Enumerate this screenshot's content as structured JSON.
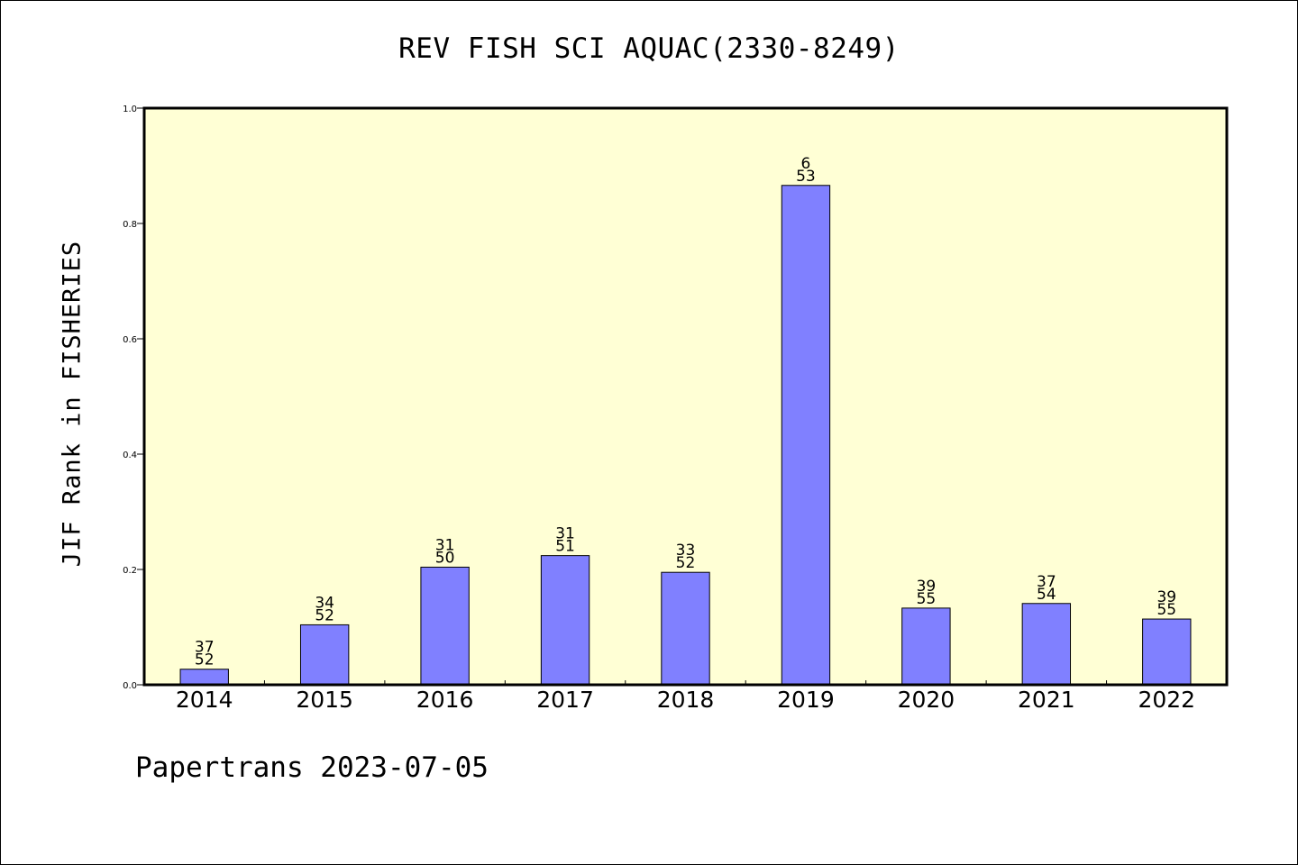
{
  "colors": {
    "plot_background": "#ffffd5",
    "bar_fill": "#8080ff",
    "axis": "#000000"
  },
  "chart_data": {
    "type": "bar",
    "title": "REV FISH SCI AQUAC(2330-8249)",
    "xlabel": "",
    "ylabel": "JIF Rank in FISHERIES",
    "ylim": [
      0.0,
      1.0
    ],
    "yticks": [
      "0.0",
      "0.2",
      "0.4",
      "0.6",
      "0.8",
      "1.0"
    ],
    "grid": false,
    "categories": [
      "2014",
      "2015",
      "2016",
      "2017",
      "2018",
      "2019",
      "2020",
      "2021",
      "2022"
    ],
    "values": [
      0.027,
      0.104,
      0.204,
      0.224,
      0.195,
      0.866,
      0.133,
      0.141,
      0.114
    ],
    "rank": [
      "37",
      "34",
      "31",
      "31",
      "33",
      "6",
      "39",
      "37",
      "39"
    ],
    "total": [
      "52",
      "52",
      "50",
      "51",
      "52",
      "53",
      "55",
      "54",
      "55"
    ]
  },
  "footer": {
    "note": "Papertrans 2023-07-05"
  }
}
